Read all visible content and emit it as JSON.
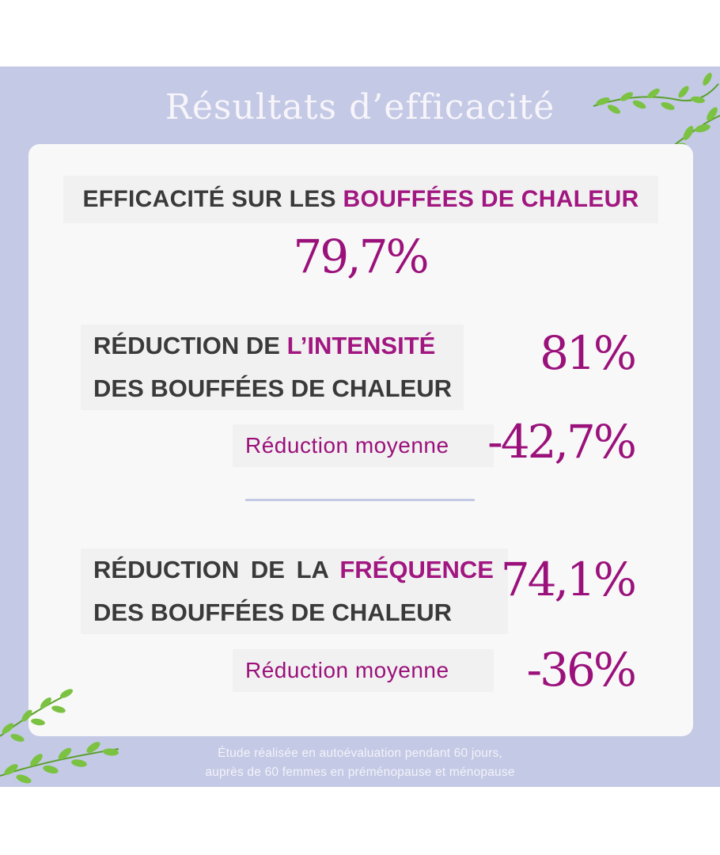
{
  "title": "Résultats d’efficacité",
  "headline": {
    "part1": "EFFICACITÉ SUR LES ",
    "accent": "BOUFFÉES DE CHALEUR"
  },
  "main_value": "79,7%",
  "intensity": {
    "line1_pre": "RÉDUCTION DE ",
    "line1_accent": "L’INTENSITÉ",
    "line2": "DES BOUFFÉES DE CHALEUR",
    "value": "81%",
    "sub_label": "Réduction moyenne",
    "sub_value": "-42,7%"
  },
  "frequency": {
    "line1_pre": "RÉDUCTION DE LA ",
    "line1_accent": "FRÉQUENCE",
    "line2": "DES BOUFFÉES DE CHALEUR",
    "value": "74,1%",
    "sub_label": "Réduction moyenne",
    "sub_value": "-36%"
  },
  "footnote": {
    "line1": "Étude réalisée en autoévaluation pendant 60 jours,",
    "line2": "auprès de 60 femmes en préménopause et ménopause"
  },
  "colors": {
    "background_panel": "#c4c9e6",
    "accent": "#a11680",
    "text_dark": "#3a3a3a",
    "leaf_green": "#7cc242"
  },
  "icons": [
    "leaf-vine-decoration"
  ]
}
